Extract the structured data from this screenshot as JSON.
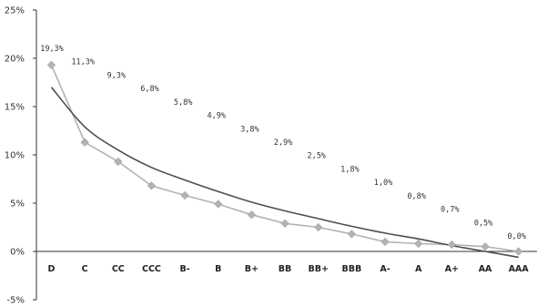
{
  "chart_data": {
    "type": "line",
    "title": "",
    "xlabel": "",
    "ylabel": "",
    "categories": [
      "D",
      "C",
      "CC",
      "CCC",
      "B-",
      "B",
      "B+",
      "BB",
      "BB+",
      "BBB",
      "A-",
      "A",
      "A+",
      "AA",
      "AAA"
    ],
    "series": [
      {
        "values": [
          19.3,
          11.3,
          9.3,
          6.8,
          5.8,
          4.9,
          3.8,
          2.9,
          2.5,
          1.8,
          1.0,
          0.8,
          0.7,
          0.5,
          0.0
        ],
        "data_labels": [
          "19,3%",
          "11,3%",
          "9,3%",
          "6,8%",
          "5,8%",
          "4,9%",
          "3,8%",
          "2,9%",
          "2,5%",
          "1,8%",
          "1,0%",
          "0,8%",
          "0,7%",
          "0,5%",
          "0,0%"
        ],
        "color": "#b3b3b3",
        "marker": "diamond"
      }
    ],
    "trendline": {
      "values": [
        17.0,
        12.9,
        10.5,
        8.7,
        7.4,
        6.2,
        5.1,
        4.2,
        3.4,
        2.6,
        1.9,
        1.3,
        0.6,
        0.0,
        -0.6
      ],
      "color": "#4d4d4d"
    },
    "ylim": [
      -5,
      25
    ],
    "yticks": [
      -5,
      0,
      5,
      10,
      15,
      20,
      25
    ],
    "ytick_labels": [
      "-5%",
      "0%",
      "5%",
      "10%",
      "15%",
      "20%",
      "25%"
    ],
    "grid": false,
    "legend": "none"
  }
}
